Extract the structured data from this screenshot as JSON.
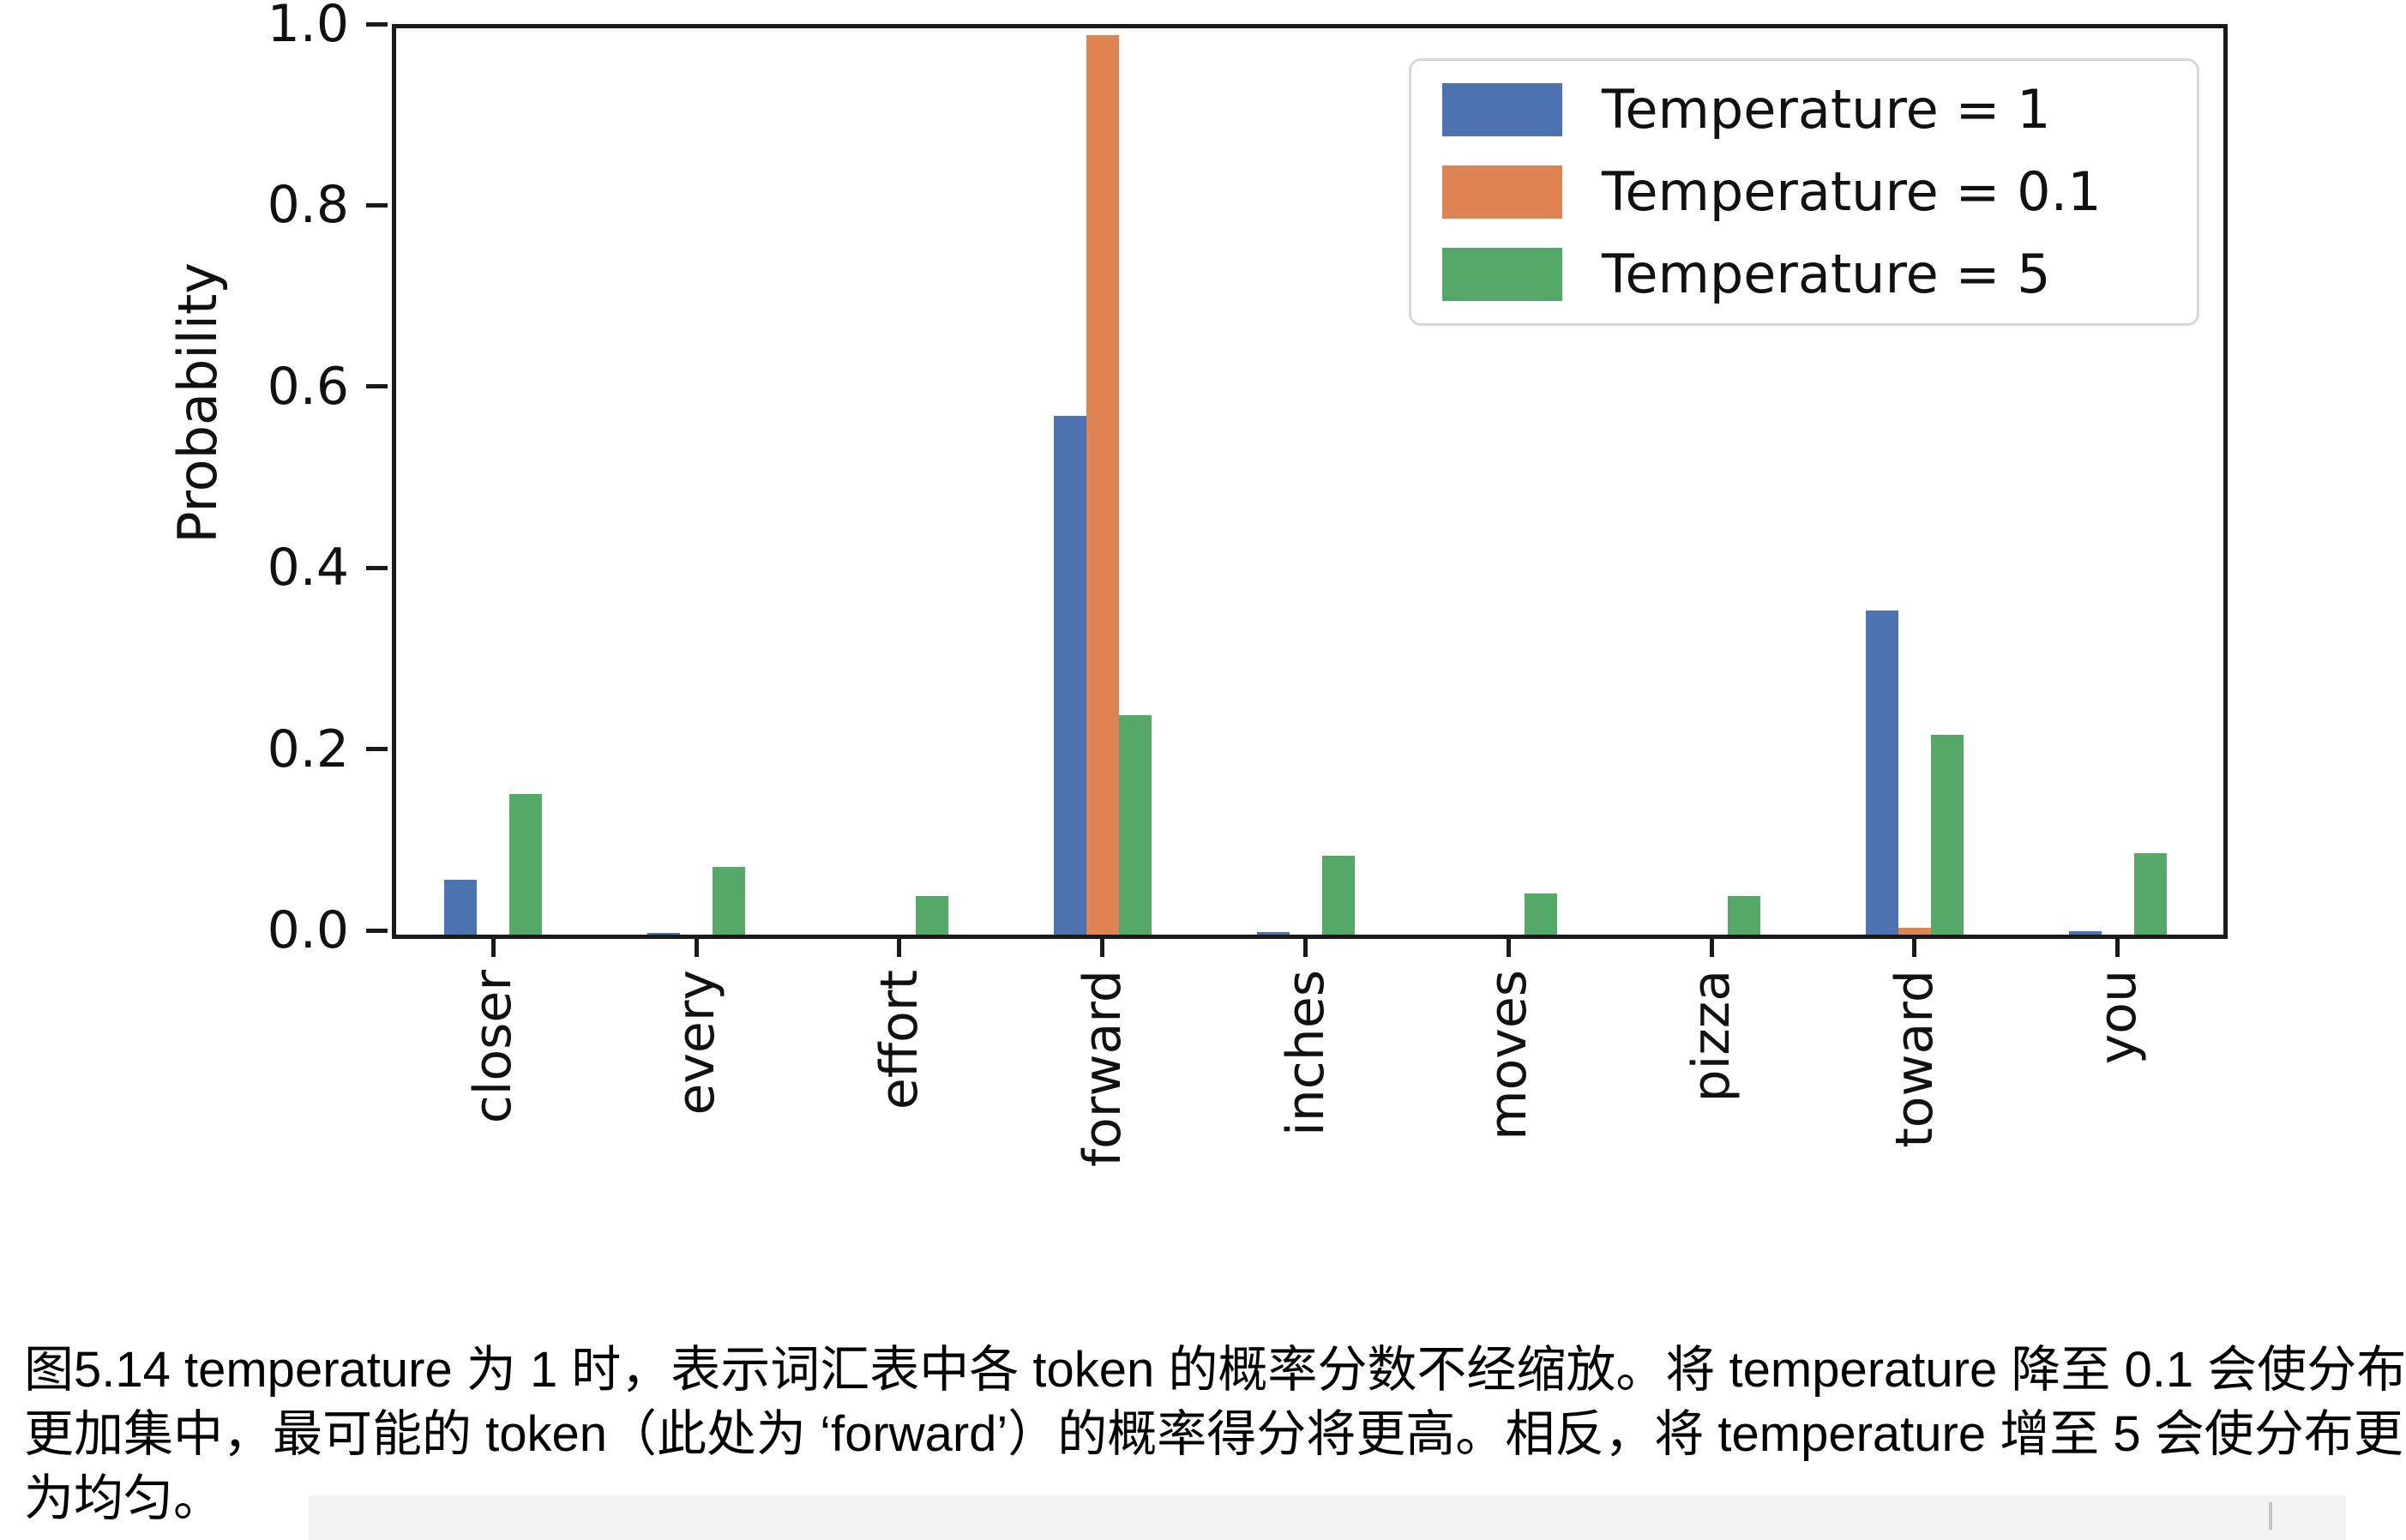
{
  "figure": {
    "ylabel": "Probability",
    "ytick_labels": [
      "0.0",
      "0.2",
      "0.4",
      "0.6",
      "0.8",
      "1.0"
    ]
  },
  "legend": {
    "items": [
      {
        "label": "Temperature = 1",
        "color": "#4C72B0"
      },
      {
        "label": "Temperature = 0.1",
        "color": "#DD8452"
      },
      {
        "label": "Temperature = 5",
        "color": "#55A868"
      }
    ]
  },
  "chart_data": {
    "type": "bar",
    "title": "",
    "xlabel": "",
    "ylabel": "Probability",
    "ylim": [
      0,
      1.0
    ],
    "ytick_step": 0.2,
    "grid": false,
    "legend_position": "upper right",
    "categories": [
      "closer",
      "every",
      "effort",
      "forward",
      "inches",
      "moves",
      "pizza",
      "toward",
      "you"
    ],
    "series": [
      {
        "name": "Temperature = 1",
        "color": "#4C72B0",
        "values": [
          0.061,
          0.002,
          0.0,
          0.572,
          0.003,
          0.0,
          0.0,
          0.358,
          0.004
        ]
      },
      {
        "name": "Temperature = 0.1",
        "color": "#DD8452",
        "values": [
          0.0,
          0.0,
          0.0,
          0.992,
          0.0,
          0.0,
          0.0,
          0.008,
          0.0
        ]
      },
      {
        "name": "Temperature = 5",
        "color": "#55A868",
        "values": [
          0.155,
          0.075,
          0.043,
          0.242,
          0.087,
          0.045,
          0.043,
          0.22,
          0.09
        ]
      }
    ]
  },
  "caption": {
    "lines": [
      "图5.14 temperature 为 1 时，表示词汇表中各 token 的概率分数不经缩放。将 temperature 降至 0.1 会使分布",
      "更加集中，最可能的 token（此处为 ‘forward’）的概率得分将更高。相反，将 temperature 增至 5 会使分布更",
      "为均匀。"
    ],
    "full": "图5.14 temperature 为 1 时，表示词汇表中各 token 的概率分数不经缩放。将 temperature 降至 0.1 会使分布更加集中，最可能的 token（此处为 ‘forward’）的概率得分将更高。相反，将 temperature 增至 5 会使分布更为均匀。"
  }
}
